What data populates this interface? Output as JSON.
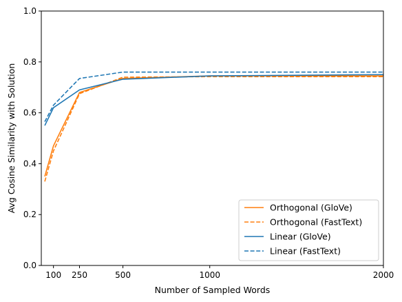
{
  "chart_data": {
    "type": "line",
    "title": "",
    "xlabel": "Number of Sampled Words",
    "ylabel": "Avg Cosine Similarity with Solution",
    "xlim": [
      30,
      2000
    ],
    "ylim": [
      0.0,
      1.0
    ],
    "xticks": [
      100,
      250,
      500,
      1000,
      2000
    ],
    "yticks": [
      0.0,
      0.2,
      0.4,
      0.6,
      0.8,
      1.0
    ],
    "grid": false,
    "legend_position": "lower-right",
    "series": [
      {
        "name": "Orthogonal (GloVe)",
        "color": "#ff7f0e",
        "dash": "solid",
        "x": [
          50,
          100,
          250,
          500,
          1000,
          2000
        ],
        "y": [
          0.35,
          0.47,
          0.68,
          0.735,
          0.745,
          0.745
        ]
      },
      {
        "name": "Orthogonal (FastText)",
        "color": "#ff7f0e",
        "dash": "dashed",
        "x": [
          50,
          100,
          250,
          500,
          1000,
          2000
        ],
        "y": [
          0.33,
          0.45,
          0.675,
          0.74,
          0.742,
          0.742
        ]
      },
      {
        "name": "Linear (GloVe)",
        "color": "#1f77b4",
        "dash": "solid",
        "x": [
          50,
          100,
          250,
          500,
          1000,
          2000
        ],
        "y": [
          0.55,
          0.62,
          0.69,
          0.732,
          0.745,
          0.75
        ]
      },
      {
        "name": "Linear (FastText)",
        "color": "#1f77b4",
        "dash": "dashed",
        "x": [
          50,
          100,
          250,
          500,
          1000,
          2000
        ],
        "y": [
          0.565,
          0.63,
          0.735,
          0.76,
          0.76,
          0.76
        ]
      }
    ]
  }
}
